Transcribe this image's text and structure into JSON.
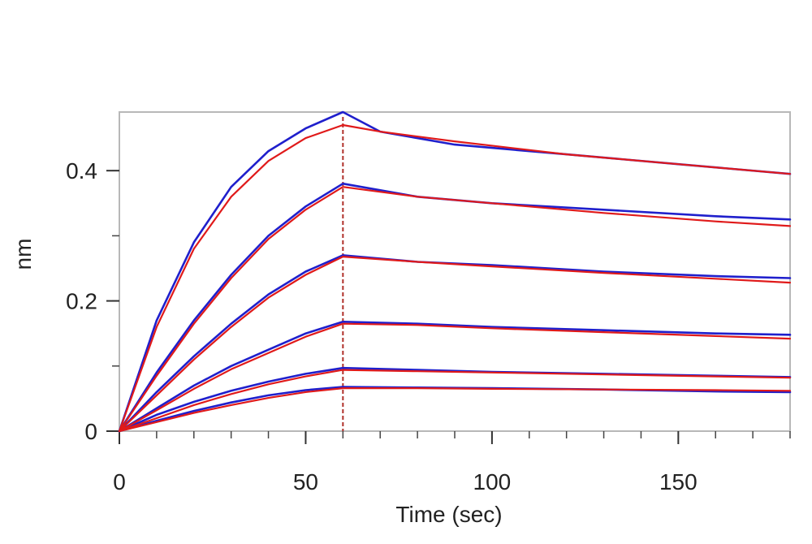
{
  "chart_data": {
    "type": "line",
    "title": "",
    "xlabel": "Time (sec)",
    "ylabel": "nm",
    "xlim": [
      0,
      180
    ],
    "ylim": [
      0,
      0.49
    ],
    "x_ticks": [
      0,
      50,
      100,
      150
    ],
    "x_tick_labels": [
      "0",
      "50",
      "100",
      "150"
    ],
    "y_ticks": [
      0,
      0.2,
      0.4
    ],
    "y_tick_labels": [
      "0",
      "0.2",
      "0.4"
    ],
    "x_minor_step": 10,
    "y_minor_step": 0.1,
    "grid": false,
    "legend": "none",
    "association_end_time": 60,
    "colors": {
      "measured": "#1f1fcc",
      "fit": "#e01a1a",
      "divider": "#b0302a",
      "frame": "#b8b8b8"
    },
    "series": [
      {
        "kind": "measured",
        "values": [
          [
            0,
            0
          ],
          [
            10,
            0.17
          ],
          [
            20,
            0.29
          ],
          [
            30,
            0.375
          ],
          [
            40,
            0.43
          ],
          [
            50,
            0.465
          ],
          [
            60,
            0.49
          ],
          [
            70,
            0.46
          ],
          [
            90,
            0.44
          ],
          [
            120,
            0.425
          ],
          [
            150,
            0.41
          ],
          [
            180,
            0.395
          ]
        ]
      },
      {
        "kind": "fit",
        "values": [
          [
            0,
            0
          ],
          [
            10,
            0.16
          ],
          [
            20,
            0.28
          ],
          [
            30,
            0.36
          ],
          [
            40,
            0.415
          ],
          [
            50,
            0.45
          ],
          [
            60,
            0.47
          ],
          [
            70,
            0.46
          ],
          [
            90,
            0.445
          ],
          [
            120,
            0.425
          ],
          [
            150,
            0.41
          ],
          [
            180,
            0.395
          ]
        ]
      },
      {
        "kind": "measured",
        "values": [
          [
            0,
            0
          ],
          [
            10,
            0.09
          ],
          [
            20,
            0.17
          ],
          [
            30,
            0.24
          ],
          [
            40,
            0.3
          ],
          [
            50,
            0.345
          ],
          [
            60,
            0.38
          ],
          [
            80,
            0.36
          ],
          [
            100,
            0.35
          ],
          [
            130,
            0.34
          ],
          [
            160,
            0.33
          ],
          [
            180,
            0.325
          ]
        ]
      },
      {
        "kind": "fit",
        "values": [
          [
            0,
            0
          ],
          [
            10,
            0.085
          ],
          [
            20,
            0.165
          ],
          [
            30,
            0.235
          ],
          [
            40,
            0.295
          ],
          [
            50,
            0.34
          ],
          [
            60,
            0.375
          ],
          [
            80,
            0.36
          ],
          [
            100,
            0.35
          ],
          [
            130,
            0.335
          ],
          [
            160,
            0.322
          ],
          [
            180,
            0.315
          ]
        ]
      },
      {
        "kind": "measured",
        "values": [
          [
            0,
            0
          ],
          [
            10,
            0.06
          ],
          [
            20,
            0.115
          ],
          [
            30,
            0.165
          ],
          [
            40,
            0.21
          ],
          [
            50,
            0.245
          ],
          [
            60,
            0.27
          ],
          [
            80,
            0.26
          ],
          [
            100,
            0.255
          ],
          [
            130,
            0.245
          ],
          [
            160,
            0.238
          ],
          [
            180,
            0.235
          ]
        ]
      },
      {
        "kind": "fit",
        "values": [
          [
            0,
            0
          ],
          [
            10,
            0.055
          ],
          [
            20,
            0.11
          ],
          [
            30,
            0.16
          ],
          [
            40,
            0.205
          ],
          [
            50,
            0.24
          ],
          [
            60,
            0.268
          ],
          [
            80,
            0.26
          ],
          [
            100,
            0.253
          ],
          [
            130,
            0.243
          ],
          [
            160,
            0.234
          ],
          [
            180,
            0.228
          ]
        ]
      },
      {
        "kind": "measured",
        "values": [
          [
            0,
            0
          ],
          [
            10,
            0.035
          ],
          [
            20,
            0.07
          ],
          [
            30,
            0.1
          ],
          [
            40,
            0.125
          ],
          [
            50,
            0.15
          ],
          [
            60,
            0.168
          ],
          [
            80,
            0.165
          ],
          [
            100,
            0.16
          ],
          [
            130,
            0.155
          ],
          [
            160,
            0.15
          ],
          [
            180,
            0.148
          ]
        ]
      },
      {
        "kind": "fit",
        "values": [
          [
            0,
            0
          ],
          [
            10,
            0.032
          ],
          [
            20,
            0.065
          ],
          [
            30,
            0.095
          ],
          [
            40,
            0.12
          ],
          [
            50,
            0.145
          ],
          [
            60,
            0.165
          ],
          [
            80,
            0.163
          ],
          [
            100,
            0.158
          ],
          [
            130,
            0.152
          ],
          [
            160,
            0.146
          ],
          [
            180,
            0.142
          ]
        ]
      },
      {
        "kind": "measured",
        "values": [
          [
            0,
            0
          ],
          [
            10,
            0.025
          ],
          [
            20,
            0.045
          ],
          [
            30,
            0.062
          ],
          [
            40,
            0.076
          ],
          [
            50,
            0.088
          ],
          [
            60,
            0.097
          ],
          [
            80,
            0.094
          ],
          [
            100,
            0.091
          ],
          [
            130,
            0.088
          ],
          [
            160,
            0.085
          ],
          [
            180,
            0.083
          ]
        ]
      },
      {
        "kind": "fit",
        "values": [
          [
            0,
            0
          ],
          [
            10,
            0.02
          ],
          [
            20,
            0.04
          ],
          [
            30,
            0.057
          ],
          [
            40,
            0.072
          ],
          [
            50,
            0.084
          ],
          [
            60,
            0.094
          ],
          [
            80,
            0.092
          ],
          [
            100,
            0.09
          ],
          [
            130,
            0.087
          ],
          [
            160,
            0.084
          ],
          [
            180,
            0.082
          ]
        ]
      },
      {
        "kind": "measured",
        "values": [
          [
            0,
            0
          ],
          [
            10,
            0.016
          ],
          [
            20,
            0.031
          ],
          [
            30,
            0.044
          ],
          [
            40,
            0.055
          ],
          [
            50,
            0.063
          ],
          [
            60,
            0.068
          ],
          [
            80,
            0.067
          ],
          [
            100,
            0.066
          ],
          [
            130,
            0.064
          ],
          [
            160,
            0.061
          ],
          [
            180,
            0.06
          ]
        ]
      },
      {
        "kind": "fit",
        "values": [
          [
            0,
            0
          ],
          [
            10,
            0.014
          ],
          [
            20,
            0.028
          ],
          [
            30,
            0.04
          ],
          [
            40,
            0.051
          ],
          [
            50,
            0.06
          ],
          [
            60,
            0.066
          ],
          [
            80,
            0.066
          ],
          [
            100,
            0.065
          ],
          [
            130,
            0.064
          ],
          [
            160,
            0.063
          ],
          [
            180,
            0.062
          ]
        ]
      }
    ]
  }
}
